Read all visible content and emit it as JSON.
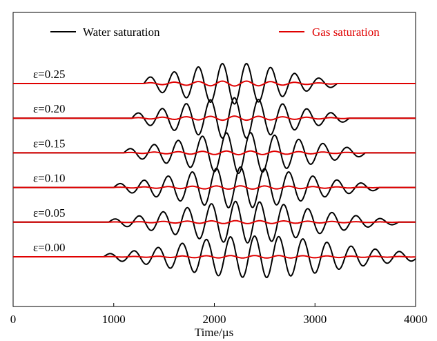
{
  "chart_data": {
    "type": "line",
    "xlabel": "Time/µs",
    "xlim": [
      0,
      4000
    ],
    "xticks": [
      0,
      1000,
      2000,
      3000,
      4000
    ],
    "grid": false,
    "legend": {
      "placement": "top",
      "entries": [
        {
          "name": "Water saturation",
          "color": "#000000"
        },
        {
          "name": "Gas saturation",
          "color": "#e00000"
        }
      ]
    },
    "colors": {
      "water": "#000000",
      "gas": "#e00000"
    },
    "traces": [
      {
        "label": "ε=0.25",
        "onset": 1300,
        "period": 240,
        "end": 2750,
        "water_peaks": [
          0.25,
          0.5,
          0.75,
          0.95,
          1.0,
          0.85,
          0.55,
          0.3,
          0.15
        ],
        "gas_amp": 0.12
      },
      {
        "label": "ε=0.20",
        "onset": 1180,
        "period": 240,
        "end": 2900,
        "water_peaks": [
          0.2,
          0.4,
          0.65,
          0.85,
          1.0,
          0.95,
          0.75,
          0.5,
          0.3,
          0.15
        ],
        "gas_amp": 0.1
      },
      {
        "label": "ε=0.15",
        "onset": 1100,
        "period": 240,
        "end": 3100,
        "water_peaks": [
          0.15,
          0.35,
          0.55,
          0.75,
          0.95,
          1.0,
          0.9,
          0.7,
          0.5,
          0.3,
          0.15
        ],
        "gas_amp": 0.09
      },
      {
        "label": "ε=0.10",
        "onset": 1000,
        "period": 240,
        "end": 3250,
        "water_peaks": [
          0.15,
          0.3,
          0.5,
          0.7,
          0.9,
          1.0,
          0.95,
          0.8,
          0.6,
          0.4,
          0.25,
          0.12
        ],
        "gas_amp": 0.08
      },
      {
        "label": "ε=0.05",
        "onset": 950,
        "period": 240,
        "end": 3450,
        "water_peaks": [
          0.12,
          0.25,
          0.45,
          0.65,
          0.85,
          1.0,
          1.0,
          0.9,
          0.7,
          0.5,
          0.35,
          0.2,
          0.1
        ],
        "gas_amp": 0.07
      },
      {
        "label": "ε=0.00",
        "onset": 900,
        "period": 240,
        "end": 4000,
        "water_peaks": [
          0.12,
          0.25,
          0.4,
          0.6,
          0.8,
          0.95,
          1.0,
          1.0,
          0.9,
          0.75,
          0.55,
          0.4,
          0.28,
          0.18,
          0.1
        ],
        "gas_amp": 0.06
      }
    ]
  }
}
